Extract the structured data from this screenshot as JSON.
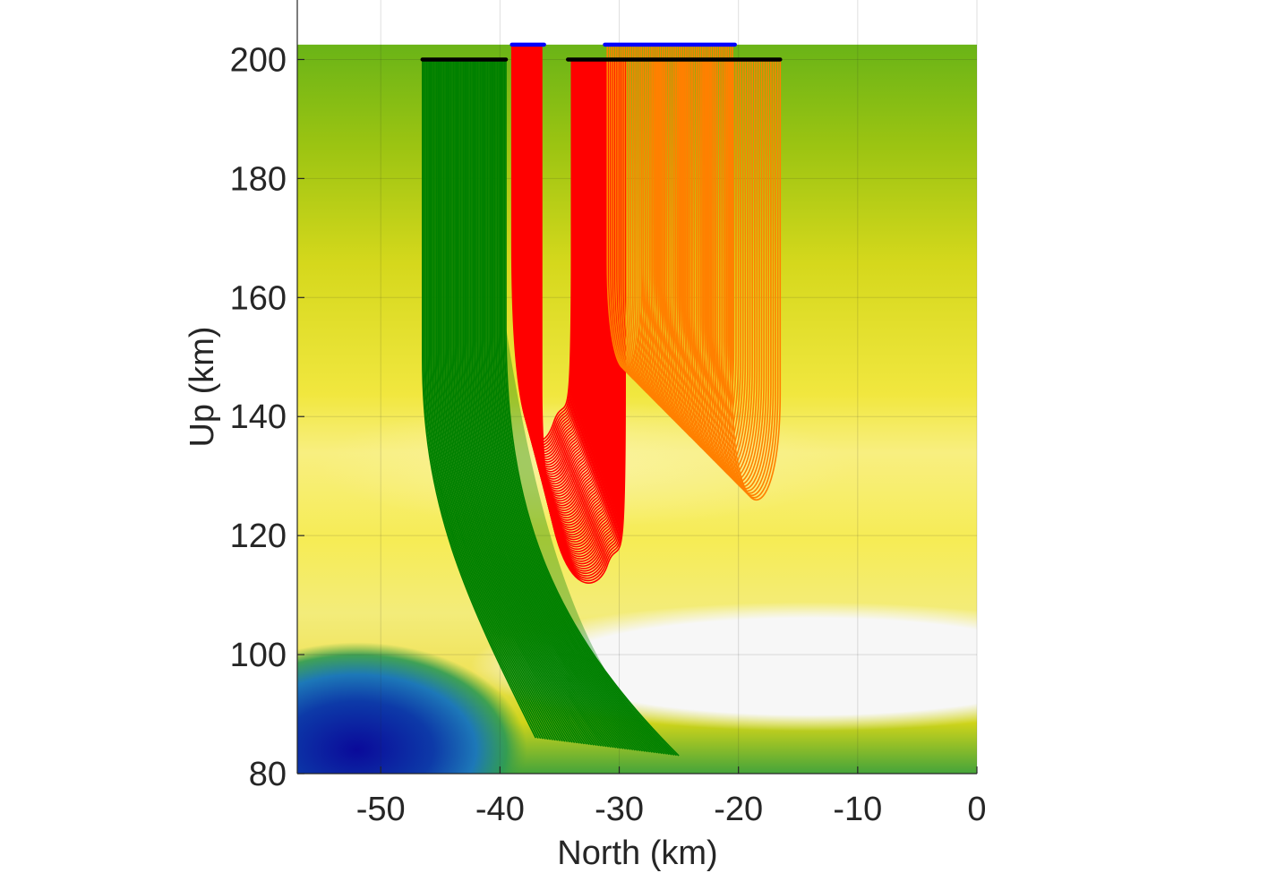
{
  "chart_data": {
    "type": "line",
    "title": "",
    "xlabel": "North (km)",
    "ylabel": "Up (km)",
    "xlim": [
      -57,
      0
    ],
    "ylim": [
      80,
      210
    ],
    "grid": true,
    "xticks": [
      -50,
      -40,
      -30,
      -20,
      -10,
      0
    ],
    "yticks": [
      80,
      100,
      120,
      140,
      160,
      180,
      200
    ],
    "xtick_labels": [
      "-50",
      "-40",
      "-30",
      "-20",
      "-10",
      "0"
    ],
    "ytick_labels": [
      "80",
      "100",
      "120",
      "140",
      "160",
      "180",
      "200"
    ],
    "background_field": {
      "description_colors": [
        "#0a0a9a",
        "#1e6fbf",
        "#1f9a3a",
        "#7fbf10",
        "#e6e22a",
        "#f7f08a",
        "#f7f7f7"
      ],
      "top_altitude": 202.5
    },
    "series": [
      {
        "color": "#008000",
        "start_x_range": [
          -46.5,
          -39.5
        ],
        "start_y": 200,
        "min_y_range": [
          86,
          82
        ],
        "end_x": -25,
        "end_y": 83
      },
      {
        "color": "#ff0000",
        "start_x_range": [
          -39,
          -36.5
        ],
        "start_y": 202.5,
        "turn_x": -31,
        "turn_y": 115,
        "end_x_range": [
          -34,
          -29.5
        ],
        "end_y": 200
      },
      {
        "color": "#ff8000",
        "start_x_range": [
          -31,
          -20.5
        ],
        "start_y": 202.5,
        "turn_y": 124,
        "end_x_range": [
          -28,
          -16.5
        ],
        "end_y": 200
      }
    ],
    "markers": [
      {
        "color": "#000000",
        "x_range": [
          -46.5,
          -39.5
        ],
        "y": 200
      },
      {
        "color": "#000000",
        "x_range": [
          -34.3,
          -16.5
        ],
        "y": 200
      },
      {
        "color": "#0000ff",
        "x_range": [
          -39,
          -36.3
        ],
        "y": 202.5
      },
      {
        "color": "#0000ff",
        "x_range": [
          -31.2,
          -20.3
        ],
        "y": 202.5
      }
    ]
  }
}
